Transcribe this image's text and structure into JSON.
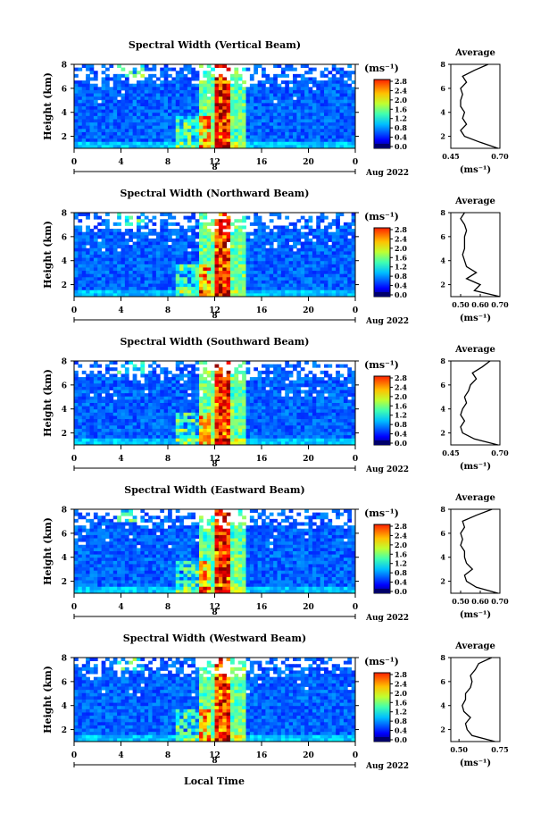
{
  "figure": {
    "xlabel": "Local Time",
    "colorbar_unit": "(ms⁻¹)",
    "avg_title": "Average",
    "avg_unit": "(ms⁻¹)",
    "colorbar_ticks": [
      "0.0",
      "0.4",
      "0.8",
      "1.2",
      "1.6",
      "2.0",
      "2.4",
      "2.8"
    ]
  },
  "chart_data": [
    {
      "type": "heatmap",
      "title": "Spectral Width (Vertical Beam)",
      "ylabel": "Height (km)",
      "xlabel": "",
      "date_label": "Aug 2022",
      "day_label": "8",
      "x_ticks": [
        "0",
        "4",
        "8",
        "12",
        "16",
        "20",
        "0"
      ],
      "y_ticks": [
        "2",
        "4",
        "6",
        "8"
      ],
      "xlim": [
        0,
        24
      ],
      "ylim": [
        1,
        8
      ],
      "colorbar": {
        "min": 0.0,
        "max": 2.8
      },
      "profile": {
        "title": "Average",
        "xlabel": "(ms⁻¹)",
        "xlim": [
          0.45,
          0.7
        ],
        "x_ticks": [
          "0.45",
          "0.70"
        ],
        "y_ticks": [
          "2",
          "4",
          "6",
          "8"
        ],
        "height": [
          1.0,
          1.5,
          2.0,
          2.5,
          3.0,
          3.5,
          4.0,
          4.5,
          5.0,
          5.5,
          6.0,
          6.5,
          7.0,
          7.5,
          8.0
        ],
        "value": [
          0.69,
          0.6,
          0.52,
          0.5,
          0.53,
          0.51,
          0.52,
          0.5,
          0.5,
          0.51,
          0.5,
          0.53,
          0.51,
          0.57,
          0.64
        ]
      }
    },
    {
      "type": "heatmap",
      "title": "Spectral Width (Northward Beam)",
      "ylabel": "Height (km)",
      "xlabel": "",
      "date_label": "Aug 2022",
      "day_label": "8",
      "x_ticks": [
        "0",
        "4",
        "8",
        "12",
        "16",
        "20",
        "0"
      ],
      "y_ticks": [
        "2",
        "4",
        "6",
        "8"
      ],
      "xlim": [
        0,
        24
      ],
      "ylim": [
        1,
        8
      ],
      "colorbar": {
        "min": 0.0,
        "max": 2.8
      },
      "profile": {
        "title": "Average",
        "xlabel": "(ms⁻¹)",
        "xlim": [
          0.45,
          0.7
        ],
        "x_ticks": [
          "0.50",
          "0.60",
          "0.70"
        ],
        "y_ticks": [
          "2",
          "4",
          "6",
          "8"
        ],
        "height": [
          1.0,
          1.5,
          2.0,
          2.5,
          3.0,
          3.5,
          4.0,
          4.5,
          5.0,
          5.5,
          6.0,
          6.5,
          7.0,
          7.5,
          8.0
        ],
        "value": [
          0.7,
          0.57,
          0.6,
          0.53,
          0.58,
          0.53,
          0.52,
          0.51,
          0.52,
          0.52,
          0.52,
          0.53,
          0.52,
          0.5,
          0.52
        ]
      }
    },
    {
      "type": "heatmap",
      "title": "Spectral Width (Southward Beam)",
      "ylabel": "Height (km)",
      "xlabel": "",
      "date_label": "Aug 2022",
      "day_label": "8",
      "x_ticks": [
        "0",
        "4",
        "8",
        "12",
        "16",
        "20",
        "0"
      ],
      "y_ticks": [
        "2",
        "4",
        "6",
        "8"
      ],
      "xlim": [
        0,
        24
      ],
      "ylim": [
        1,
        8
      ],
      "colorbar": {
        "min": 0.0,
        "max": 2.8
      },
      "profile": {
        "title": "Average",
        "xlabel": "(ms⁻¹)",
        "xlim": [
          0.45,
          0.7
        ],
        "x_ticks": [
          "0.45",
          "0.70"
        ],
        "y_ticks": [
          "2",
          "4",
          "6",
          "8"
        ],
        "height": [
          1.0,
          1.5,
          2.0,
          2.5,
          3.0,
          3.5,
          4.0,
          4.5,
          5.0,
          5.5,
          6.0,
          6.5,
          7.0,
          7.5,
          8.0
        ],
        "value": [
          0.69,
          0.57,
          0.51,
          0.5,
          0.52,
          0.5,
          0.51,
          0.53,
          0.52,
          0.54,
          0.55,
          0.58,
          0.56,
          0.61,
          0.65
        ]
      }
    },
    {
      "type": "heatmap",
      "title": "Spectral Width (Eastward Beam)",
      "ylabel": "Height (km)",
      "xlabel": "",
      "date_label": "Aug 2022",
      "day_label": "8",
      "x_ticks": [
        "0",
        "4",
        "8",
        "12",
        "16",
        "20",
        "0"
      ],
      "y_ticks": [
        "2",
        "4",
        "6",
        "8"
      ],
      "xlim": [
        0,
        24
      ],
      "ylim": [
        1,
        8
      ],
      "colorbar": {
        "min": 0.0,
        "max": 2.8
      },
      "profile": {
        "title": "Average",
        "xlabel": "(ms⁻¹)",
        "xlim": [
          0.45,
          0.7
        ],
        "x_ticks": [
          "0.50",
          "0.60",
          "0.70"
        ],
        "y_ticks": [
          "2",
          "4",
          "6",
          "8"
        ],
        "height": [
          1.0,
          1.5,
          2.0,
          2.5,
          3.0,
          3.5,
          4.0,
          4.5,
          5.0,
          5.5,
          6.0,
          6.5,
          7.0,
          7.5,
          8.0
        ],
        "value": [
          0.69,
          0.58,
          0.53,
          0.52,
          0.56,
          0.53,
          0.52,
          0.52,
          0.5,
          0.51,
          0.5,
          0.52,
          0.51,
          0.58,
          0.66
        ]
      }
    },
    {
      "type": "heatmap",
      "title": "Spectral Width (Westward Beam)",
      "ylabel": "Height (km)",
      "xlabel": "Local Time",
      "date_label": "Aug 2022",
      "day_label": "8",
      "x_ticks": [
        "0",
        "4",
        "8",
        "12",
        "16",
        "20",
        "0"
      ],
      "y_ticks": [
        "2",
        "4",
        "6",
        "8"
      ],
      "xlim": [
        0,
        24
      ],
      "ylim": [
        1,
        8
      ],
      "colorbar": {
        "min": 0.0,
        "max": 2.8
      },
      "profile": {
        "title": "Average",
        "xlabel": "(ms⁻¹)",
        "xlim": [
          0.45,
          0.75
        ],
        "x_ticks": [
          "0.50",
          "0.75"
        ],
        "y_ticks": [
          "2",
          "4",
          "6",
          "8"
        ],
        "height": [
          1.0,
          1.5,
          2.0,
          2.5,
          3.0,
          3.5,
          4.0,
          4.5,
          5.0,
          5.5,
          6.0,
          6.5,
          7.0,
          7.5,
          8.0
        ],
        "value": [
          0.72,
          0.58,
          0.55,
          0.54,
          0.57,
          0.53,
          0.52,
          0.54,
          0.54,
          0.57,
          0.58,
          0.57,
          0.6,
          0.62,
          0.7
        ]
      }
    }
  ]
}
